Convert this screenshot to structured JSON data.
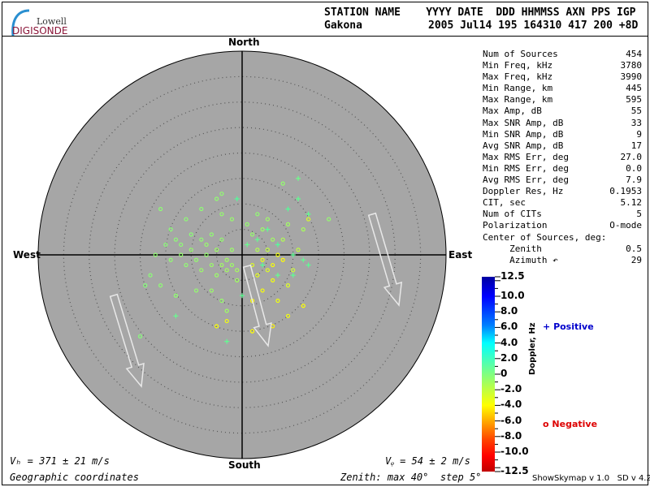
{
  "header": {
    "logo_top": "Lowell",
    "logo_bottom": "DIGISONDE",
    "labels_line": "STATION NAME    YYYY DATE  DDD HHMMSS AXN PPS IGP",
    "station": "Gakona",
    "values_line": "2005 Jul14 195 164310 417 200 +8D"
  },
  "directions": {
    "north": "North",
    "south": "South",
    "east": "East",
    "west": "West"
  },
  "stats": [
    {
      "label": "Num of Sources",
      "value": "454"
    },
    {
      "label": "Min Freq, kHz",
      "value": "3780"
    },
    {
      "label": "Max Freq, kHz",
      "value": "3990"
    },
    {
      "label": "Min Range, km",
      "value": "445"
    },
    {
      "label": "Max Range, km",
      "value": "595"
    },
    {
      "label": "Max Amp, dB",
      "value": "55"
    },
    {
      "label": "Max SNR Amp, dB",
      "value": "33"
    },
    {
      "label": "Min SNR Amp, dB",
      "value": "9"
    },
    {
      "label": "Avg SNR Amp, dB",
      "value": "17"
    },
    {
      "label": "Max RMS Err, deg",
      "value": "27.0"
    },
    {
      "label": "Min RMS Err, deg",
      "value": "0.0"
    },
    {
      "label": "Avg RMS Err, deg",
      "value": "7.9"
    },
    {
      "label": "Doppler Res, Hz",
      "value": "0.1953"
    },
    {
      "label": "CIT, sec",
      "value": "5.12"
    },
    {
      "label": "Num of CITs",
      "value": "5"
    },
    {
      "label": "Polarization",
      "value": "O-mode"
    },
    {
      "label": "Center of Sources, deg:",
      "value": ""
    },
    {
      "label": "     Zenith",
      "value": "0.5"
    },
    {
      "label": "     Azimuth ↶",
      "value": "29"
    }
  ],
  "footer": {
    "vh": "Vₕ = 371 ± 21 m/s",
    "vz": "Vᵩ = 54 ± 2 m/s",
    "coords": "Geographic coordinates",
    "zenith": "Zenith: max 40°  step 5°",
    "version": "ShowSkymap v 1.0   SD v 4.2"
  },
  "legend": {
    "positive": "Positive",
    "negative": "Negative",
    "positive_symbol": "+",
    "negative_symbol": "o",
    "positive_color": "#0000cc",
    "negative_color": "#dd0000"
  },
  "colorbar": {
    "label": "Doppler, Hz",
    "ticks": [
      "12.5",
      "10.0",
      "8.0",
      "6.0",
      "4.0",
      "2.0",
      "0",
      "-2.0",
      "-4.0",
      "-6.0",
      "-8.0",
      "-10.0",
      "-12.5"
    ],
    "range": [
      -12.5,
      12.5
    ]
  },
  "chart_data": {
    "type": "scatter",
    "projection": "polar skymap",
    "zenith_max_deg": 40,
    "zenith_step_deg": 5,
    "point_format": [
      "east_deg",
      "north_deg",
      "doppler_hz"
    ],
    "points": [
      [
        -17,
        0,
        -0.5
      ],
      [
        -15,
        2,
        -0.3
      ],
      [
        -14,
        -1,
        -0.5
      ],
      [
        -13,
        3,
        -0.4
      ],
      [
        -12,
        0,
        -0.6
      ],
      [
        -11,
        -2,
        -0.5
      ],
      [
        -12,
        2,
        -0.4
      ],
      [
        -10,
        1,
        -0.7
      ],
      [
        -9,
        -1,
        -0.6
      ],
      [
        -10,
        4,
        -0.3
      ],
      [
        -8,
        3,
        -0.5
      ],
      [
        -8,
        -3,
        -0.8
      ],
      [
        -7,
        0,
        -0.6
      ],
      [
        -7,
        2,
        -0.7
      ],
      [
        -6,
        -2,
        -0.8
      ],
      [
        -6,
        4,
        -0.5
      ],
      [
        -5,
        1,
        -0.9
      ],
      [
        -5,
        -4,
        -0.8
      ],
      [
        -4,
        -2,
        -1.0
      ],
      [
        -4,
        3,
        -0.6
      ],
      [
        -3,
        -1,
        -1.0
      ],
      [
        -3,
        -3,
        -1.1
      ],
      [
        -2,
        -2,
        -0.9
      ],
      [
        -2,
        1,
        -0.8
      ],
      [
        -1,
        -3,
        -1.2
      ],
      [
        -1,
        -5,
        -1.0
      ],
      [
        -16,
        -6,
        -0.4
      ],
      [
        -13,
        -8,
        -0.5
      ],
      [
        -9,
        -7,
        -0.6
      ],
      [
        -6,
        -7,
        -0.8
      ],
      [
        -4,
        -9,
        -0.7
      ],
      [
        -3,
        -11,
        -0.9
      ],
      [
        -5,
        11,
        -0.5
      ],
      [
        -8,
        9,
        -0.4
      ],
      [
        -4,
        8,
        -0.6
      ],
      [
        -2,
        7,
        -0.7
      ],
      [
        -11,
        7,
        -0.4
      ],
      [
        -14,
        5,
        -0.3
      ],
      [
        -18,
        -4,
        -0.3
      ],
      [
        -19,
        -6,
        -0.2
      ],
      [
        1,
        6,
        -0.6
      ],
      [
        2,
        4,
        -0.7
      ],
      [
        3,
        8,
        -0.5
      ],
      [
        4,
        5,
        -0.8
      ],
      [
        5,
        7,
        -0.9
      ],
      [
        6,
        3,
        -1.0
      ],
      [
        3,
        1,
        -1.5
      ],
      [
        5,
        1,
        -2.0
      ],
      [
        2,
        -2,
        -3.0
      ],
      [
        4,
        -1,
        -3.5
      ],
      [
        5,
        -3,
        -3.0
      ],
      [
        6,
        -2,
        -3.8
      ],
      [
        7,
        0,
        -3.5
      ],
      [
        8,
        -1,
        -4.0
      ],
      [
        3,
        -4,
        -3.2
      ],
      [
        6,
        -5,
        -3.6
      ],
      [
        4,
        -7,
        -3.8
      ],
      [
        2,
        -9,
        -4.0
      ],
      [
        7,
        -9,
        -3.5
      ],
      [
        9,
        -6,
        -3.0
      ],
      [
        10,
        -3,
        -2.5
      ],
      [
        11,
        1,
        -2.0
      ],
      [
        8,
        3,
        -1.5
      ],
      [
        9,
        6,
        -1.0
      ],
      [
        12,
        5,
        -1.2
      ],
      [
        6,
        -14,
        -4.2
      ],
      [
        -3,
        -13,
        -3.6
      ],
      [
        2,
        -15,
        -4.0
      ],
      [
        -5,
        -14,
        -3.8
      ],
      [
        9,
        -12,
        -3.7
      ],
      [
        12,
        -10,
        -3.9
      ],
      [
        13,
        7,
        -2.8
      ],
      [
        1,
        2,
        0.8
      ],
      [
        3,
        3,
        1.0
      ],
      [
        5,
        5,
        1.2
      ],
      [
        7,
        2,
        1.5
      ],
      [
        10,
        0,
        1.2
      ],
      [
        12,
        -1,
        1.0
      ],
      [
        9,
        9,
        1.4
      ],
      [
        11,
        11,
        1.0
      ],
      [
        -1,
        11,
        1.5
      ],
      [
        0,
        -8,
        1.2
      ],
      [
        -3,
        -17,
        1.0
      ],
      [
        -13,
        -12,
        0.8
      ],
      [
        4,
        -2,
        1.3
      ],
      [
        7,
        -4,
        0.9
      ],
      [
        10,
        -4,
        1.1
      ],
      [
        13,
        8,
        1.0
      ],
      [
        11,
        15,
        0.6
      ],
      [
        13,
        -2,
        1.2
      ],
      [
        -16,
        9,
        -0.4
      ],
      [
        -20,
        -16,
        -0.2
      ],
      [
        -4,
        12,
        -0.5
      ],
      [
        17,
        7,
        -0.6
      ],
      [
        -13,
        -8,
        -0.5
      ],
      [
        8,
        14,
        -0.6
      ]
    ]
  }
}
